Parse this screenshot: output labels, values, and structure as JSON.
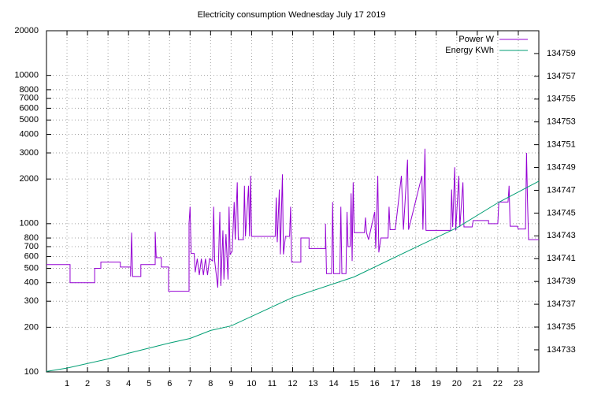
{
  "chart_data": {
    "type": "line",
    "title": "Electricity consumption Wednesday July 17 2019",
    "xlim": [
      0,
      24
    ],
    "xticks": [
      1,
      2,
      3,
      4,
      5,
      6,
      7,
      8,
      9,
      10,
      11,
      12,
      13,
      14,
      15,
      16,
      17,
      18,
      19,
      20,
      21,
      22,
      23
    ],
    "ylim": [
      100,
      20000
    ],
    "ylog": true,
    "yticks": [
      100,
      200,
      300,
      400,
      500,
      600,
      700,
      800,
      1000,
      2000,
      3000,
      4000,
      5000,
      6000,
      7000,
      8000,
      10000,
      20000
    ],
    "y2lim": [
      134731.06,
      134761.0
    ],
    "y2ticks": [
      134733,
      134735,
      134737,
      134739,
      134741,
      134743,
      134745,
      134747,
      134749,
      134751,
      134753,
      134755,
      134757,
      134759
    ],
    "grid": true,
    "legend": "top-right",
    "series": [
      {
        "name": "Power W",
        "color": "#9400d3",
        "x": [
          0,
          1.15,
          1.15,
          2.35,
          2.35,
          2.65,
          2.65,
          3.6,
          3.6,
          4.1,
          4.1,
          4.15,
          4.2,
          4.6,
          4.6,
          5.3,
          5.3,
          5.35,
          5.6,
          5.6,
          5.95,
          5.95,
          6.95,
          6.95,
          7.0,
          7.05,
          7.2,
          7.25,
          7.35,
          7.45,
          7.55,
          7.65,
          7.75,
          7.85,
          7.95,
          8.1,
          8.15,
          8.2,
          8.35,
          8.45,
          8.5,
          8.6,
          8.65,
          8.75,
          8.85,
          8.9,
          8.95,
          9.05,
          9.15,
          9.2,
          9.3,
          9.35,
          9.6,
          9.65,
          9.7,
          9.85,
          9.9,
          9.95,
          10.0,
          11.15,
          11.2,
          11.25,
          11.35,
          11.4,
          11.5,
          11.55,
          11.65,
          11.85,
          11.9,
          11.95,
          12.4,
          12.4,
          12.8,
          12.8,
          13.6,
          13.6,
          13.65,
          13.9,
          13.95,
          14.0,
          14.3,
          14.35,
          14.4,
          14.6,
          14.65,
          14.7,
          14.8,
          14.85,
          14.9,
          14.95,
          15.0,
          15.5,
          15.55,
          15.6,
          15.7,
          16.0,
          16.05,
          16.15,
          16.2,
          16.3,
          16.65,
          16.7,
          16.75,
          17.0,
          17.3,
          17.4,
          17.6,
          17.65,
          18.3,
          18.35,
          18.45,
          18.5,
          19.7,
          19.75,
          19.8,
          19.9,
          19.95,
          20.1,
          20.15,
          20.3,
          20.35,
          20.75,
          20.8,
          21.55,
          21.55,
          22.0,
          22.05,
          22.5,
          22.55,
          22.6,
          22.95,
          23.0,
          23.35,
          23.4,
          23.45,
          23.5,
          24
        ],
        "values": [
          530,
          530,
          400,
          400,
          500,
          500,
          550,
          550,
          510,
          510,
          440,
          870,
          440,
          440,
          530,
          530,
          880,
          590,
          590,
          510,
          510,
          350,
          350,
          1000,
          1300,
          630,
          630,
          470,
          580,
          450,
          580,
          450,
          580,
          450,
          580,
          560,
          1300,
          560,
          370,
          1200,
          380,
          900,
          420,
          850,
          420,
          1300,
          620,
          650,
          1400,
          780,
          1900,
          780,
          780,
          1800,
          820,
          1800,
          820,
          2100,
          820,
          820,
          1500,
          750,
          1700,
          620,
          2150,
          620,
          820,
          820,
          1300,
          550,
          550,
          800,
          800,
          680,
          680,
          1000,
          460,
          460,
          1400,
          460,
          460,
          1300,
          460,
          460,
          1200,
          700,
          700,
          1600,
          560,
          1900,
          870,
          870,
          1100,
          870,
          780,
          1200,
          680,
          2100,
          640,
          800,
          800,
          1300,
          910,
          910,
          2100,
          910,
          2700,
          910,
          2100,
          910,
          3200,
          900,
          900,
          1700,
          950,
          2400,
          900,
          2100,
          950,
          1900,
          950,
          950,
          1050,
          1050,
          1000,
          1000,
          1400,
          1400,
          1800,
          960,
          960,
          920,
          920,
          3000,
          1400,
          780,
          780
        ]
      },
      {
        "name": "Energy KWh",
        "color": "#009e73",
        "axis": "y2",
        "x": [
          0,
          1,
          3,
          4,
          6,
          7,
          8,
          9,
          12,
          15,
          18,
          20,
          22,
          24
        ],
        "values": [
          134731.1,
          134731.4,
          134732.2,
          134732.7,
          134733.6,
          134734.0,
          134734.7,
          134735.1,
          134737.6,
          134739.4,
          134742.0,
          134743.7,
          134745.9,
          134747.8
        ]
      }
    ]
  }
}
